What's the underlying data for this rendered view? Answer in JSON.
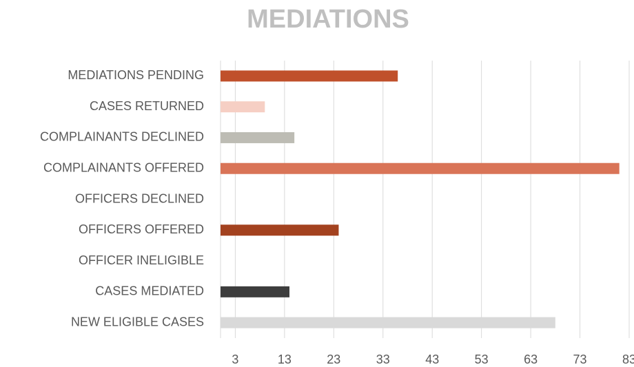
{
  "chart_data": {
    "type": "barh",
    "title": "MEDIATIONS",
    "categories": [
      "MEDIATIONS PENDING",
      "CASES RETURNED",
      "COMPLAINANTS DECLINED",
      "COMPLAINANTS OFFERED",
      "OFFICERS DECLINED",
      "OFFICERS OFFERED",
      "OFFICER INELIGIBLE",
      "CASES MEDIATED",
      "NEW ELIGIBLE CASES"
    ],
    "values": [
      36,
      9,
      15,
      81,
      0,
      24,
      0,
      14,
      68
    ],
    "colors": [
      "#c0502b",
      "#f6cfc4",
      "#bdbcb4",
      "#d97457",
      "#c0502b",
      "#a3421f",
      "#8a8a8a",
      "#3d3d3d",
      "#d9d9d9"
    ],
    "xlim": [
      0,
      83
    ],
    "xticks": [
      3,
      13,
      23,
      33,
      43,
      53,
      63,
      73,
      83
    ],
    "grid": true
  }
}
